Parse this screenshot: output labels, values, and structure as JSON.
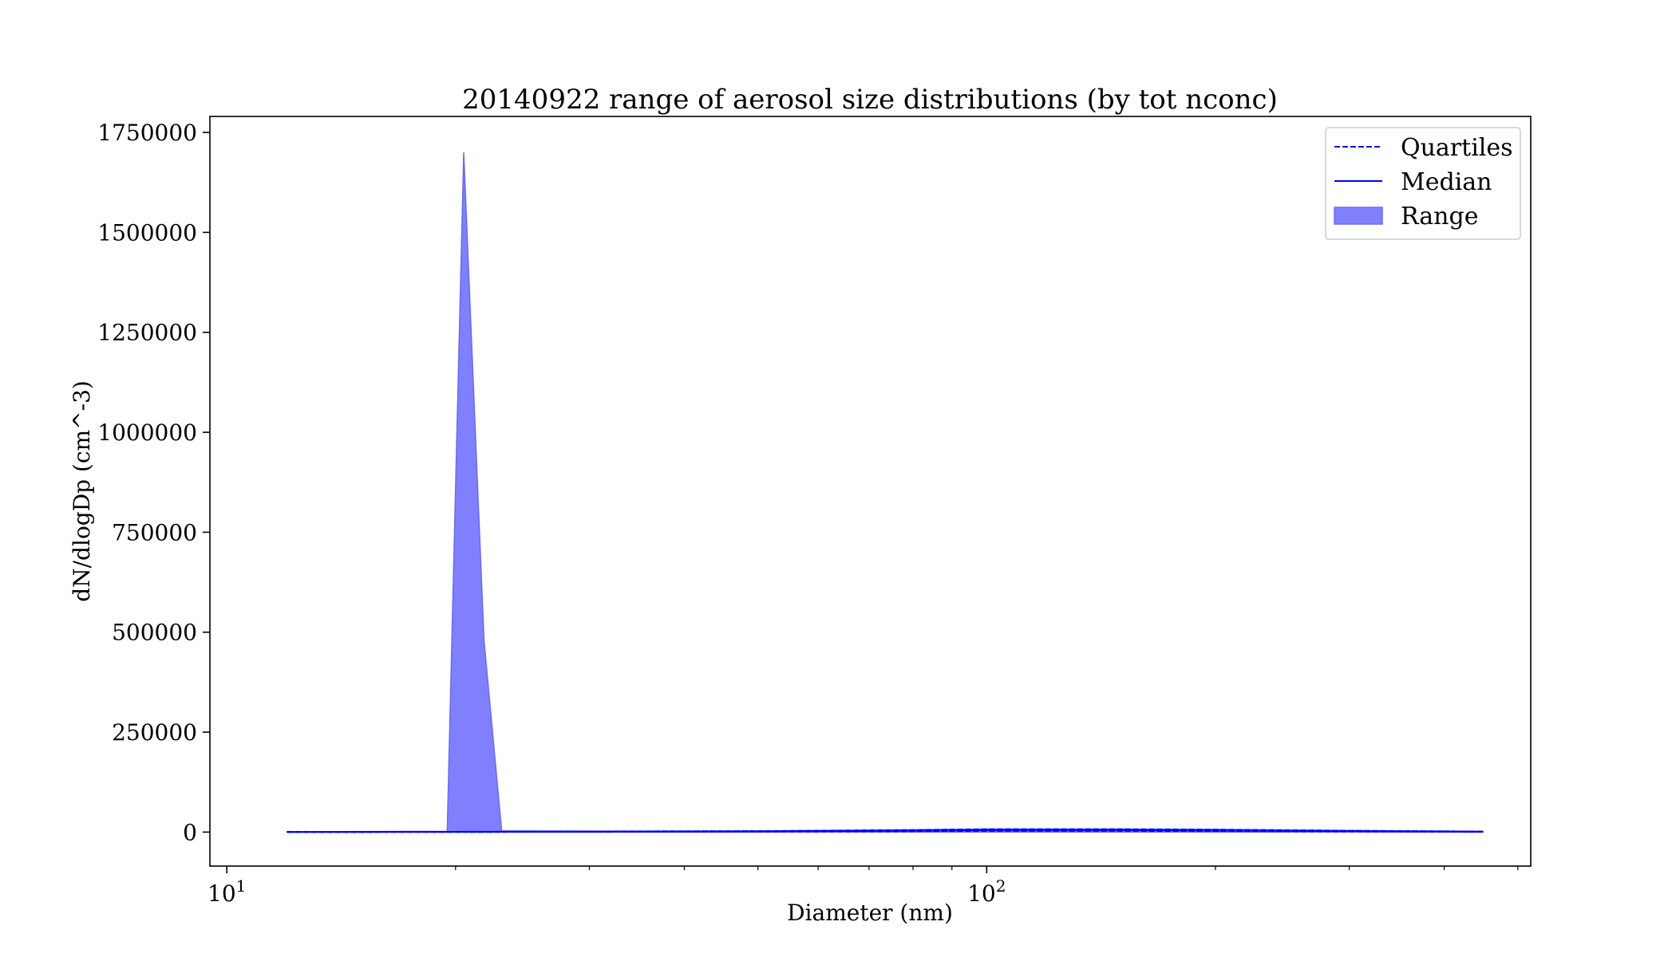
{
  "chart_data": {
    "type": "area",
    "title": "20140922 range of aerosol size distributions (by tot nconc)",
    "xlabel": "Diameter (nm)",
    "ylabel": "dN/dlogDp (cm^-3)",
    "xscale": "log",
    "xlim": [
      9.5,
      520
    ],
    "ylim": [
      -85000,
      1790000
    ],
    "x_ticks": [
      {
        "value": 10,
        "base": "10",
        "exp": "1"
      },
      {
        "value": 100,
        "base": "10",
        "exp": "2"
      }
    ],
    "y_ticks": [
      0,
      250000,
      500000,
      750000,
      1000000,
      1250000,
      1500000,
      1750000
    ],
    "y_tick_labels": [
      "0",
      "250000",
      "500000",
      "750000",
      "1000000",
      "1250000",
      "1500000",
      "1750000"
    ],
    "grid": false,
    "legend": {
      "position": "top-right",
      "entries": [
        "Quartiles",
        "Median",
        "Range"
      ]
    },
    "colors": {
      "line": "#0000ff",
      "range_fill": "#8080ff",
      "range_edge": "#6a6af0"
    },
    "x": [
      12,
      19.5,
      20.5,
      21.8,
      23,
      30,
      50,
      80,
      100,
      150,
      200,
      300,
      400,
      450
    ],
    "series": [
      {
        "name": "Range",
        "role": "range",
        "lower": [
          0,
          0,
          0,
          0,
          0,
          0,
          0,
          0,
          0,
          0,
          0,
          0,
          0,
          0
        ],
        "upper": [
          1000,
          2000,
          1700000,
          480000,
          3000,
          2500,
          3000,
          6000,
          8000,
          8000,
          7000,
          4000,
          2500,
          2000
        ]
      },
      {
        "name": "Quartiles",
        "role": "quartile_upper",
        "values": [
          500,
          800,
          1000,
          1000,
          1200,
          1500,
          2500,
          5000,
          7000,
          7000,
          6000,
          3500,
          2000,
          1500
        ]
      },
      {
        "name": "Quartiles",
        "role": "quartile_lower",
        "values": [
          100,
          200,
          300,
          300,
          400,
          600,
          1000,
          2000,
          3000,
          3000,
          2500,
          1500,
          800,
          500
        ]
      },
      {
        "name": "Median",
        "role": "median",
        "values": [
          300,
          500,
          600,
          600,
          800,
          1000,
          1800,
          3500,
          5000,
          5000,
          4000,
          2500,
          1400,
          1000
        ]
      }
    ]
  }
}
